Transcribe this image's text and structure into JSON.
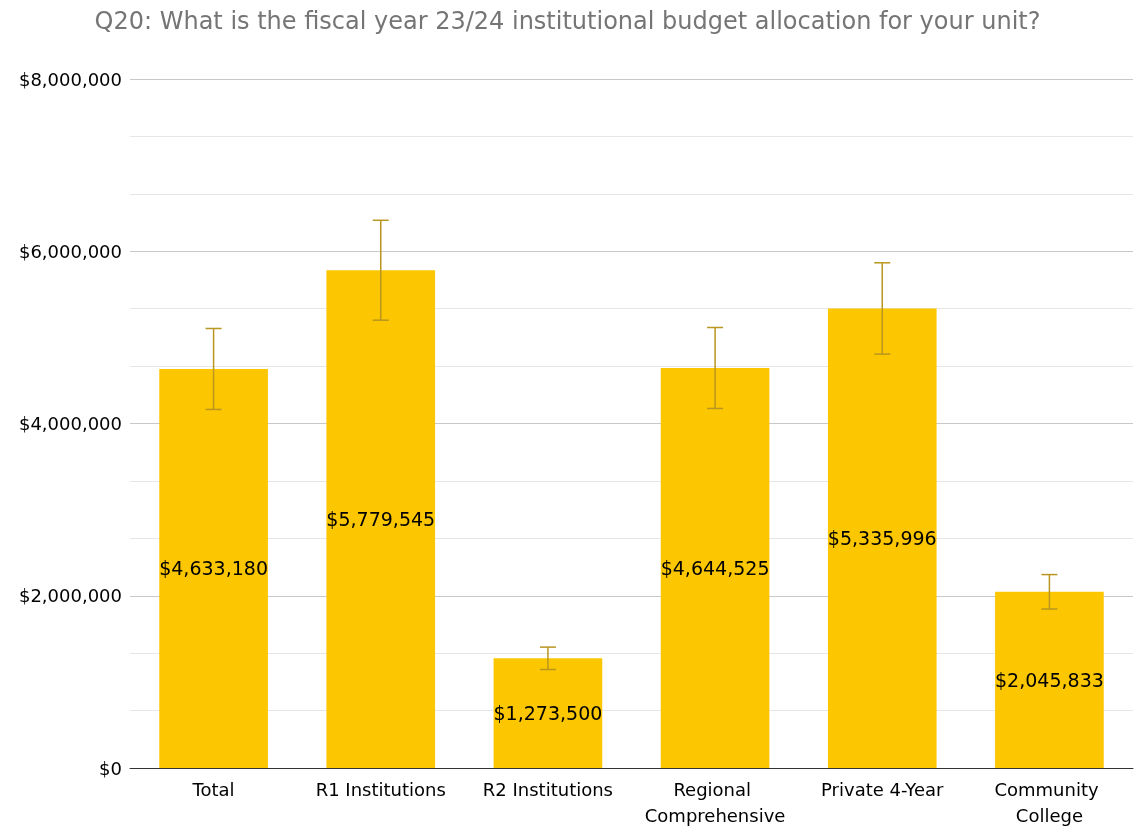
{
  "chart_data": {
    "type": "bar",
    "title": "Q20: What is the fiscal year 23/24 institutional budget allocation for your unit?",
    "categories": [
      "Total",
      "R1 Institutions",
      "R2 Institutions",
      "Regional Comprehensive",
      "Private 4-Year",
      "Community College"
    ],
    "values": [
      4633180,
      5779545,
      1273500,
      4644525,
      5335996,
      2045833
    ],
    "value_labels": [
      "$4,633,180",
      "$5,779,545",
      "$1,273,500",
      "$4,644,525",
      "$5,335,996",
      "$2,045,833"
    ],
    "errors": [
      470000,
      580000,
      130000,
      470000,
      530000,
      200000
    ],
    "color": "#fcc600",
    "ylim": [
      0,
      8000000
    ],
    "yticks": [
      {
        "value": 0,
        "label": "$0"
      },
      {
        "value": 2000000,
        "label": "$2,000,000"
      },
      {
        "value": 4000000,
        "label": "$4,000,000"
      },
      {
        "value": 6000000,
        "label": "$6,000,000"
      },
      {
        "value": 8000000,
        "label": "$8,000,000"
      }
    ],
    "grid": "y"
  }
}
